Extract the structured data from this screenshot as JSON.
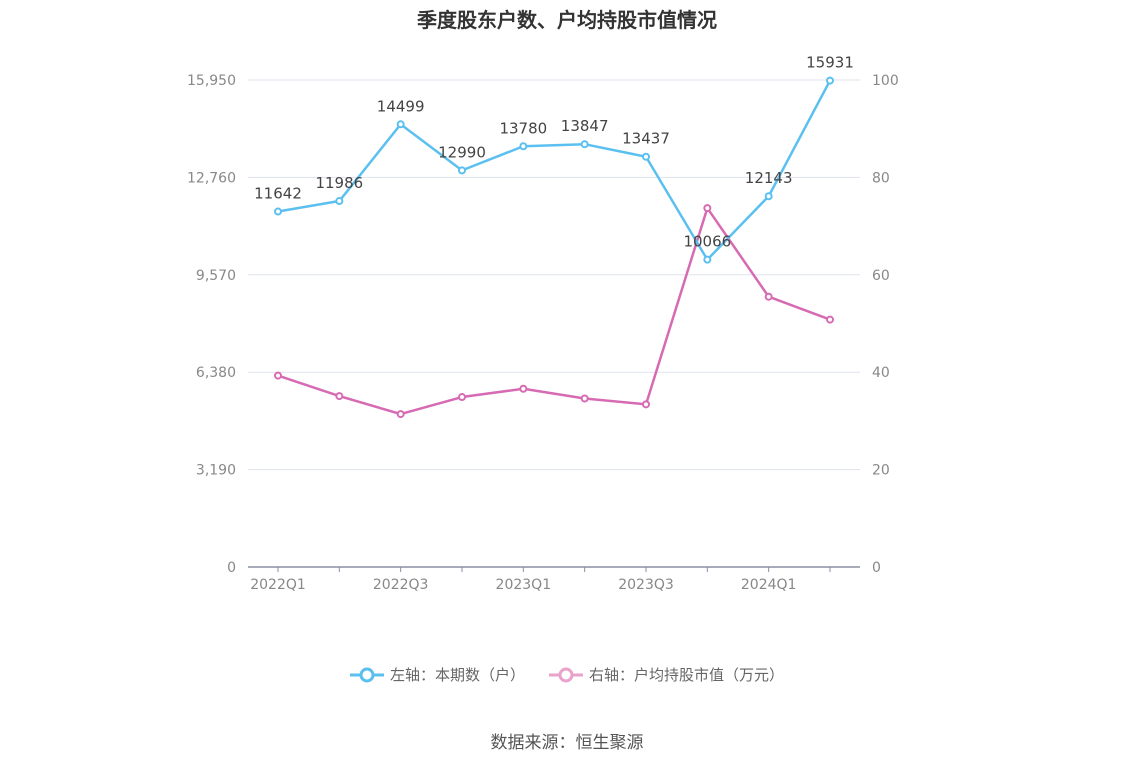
{
  "title": "季度股东户数、户均持股市值情况",
  "source": "数据来源：恒生聚源",
  "legend": [
    {
      "label": "左轴：本期数（户）",
      "color": "#5bc0ef"
    },
    {
      "label": "右轴：户均持股市值（万元）",
      "color": "#e9a2c9"
    }
  ],
  "chart_data": {
    "type": "line",
    "categories": [
      "2022Q1",
      "2022Q2",
      "2022Q3",
      "2022Q4",
      "2023Q1",
      "2023Q2",
      "2023Q3",
      "2023Q4",
      "2024Q1",
      "2024Q2"
    ],
    "x_tick_labels": [
      "2022Q1",
      "2022Q3",
      "2023Q1",
      "2023Q3",
      "2024Q1"
    ],
    "left_axis": {
      "ticks": [
        "0",
        "3,190",
        "6,380",
        "9,570",
        "12,760",
        "15,950"
      ],
      "ylim": [
        0,
        15950
      ]
    },
    "right_axis": {
      "ticks": [
        "0",
        "20",
        "40",
        "60",
        "80",
        "100"
      ],
      "ylim": [
        0,
        100
      ]
    },
    "series": [
      {
        "name": "左轴：本期数（户）",
        "axis": "left",
        "color": "#5bc0ef",
        "values": [
          11642,
          11986,
          14499,
          12990,
          13780,
          13847,
          13437,
          10066,
          12143,
          15931
        ],
        "labels": [
          "11642",
          "11986",
          "14499",
          "12990",
          "13780",
          "13847",
          "13437",
          "10066",
          "12143",
          "15931"
        ]
      },
      {
        "name": "右轴：户均持股市值（万元）",
        "axis": "right",
        "color": "#d66bb3",
        "values": [
          39.3,
          35.1,
          31.4,
          34.9,
          36.6,
          34.6,
          33.4,
          73.7,
          55.5,
          50.8
        ]
      }
    ]
  }
}
